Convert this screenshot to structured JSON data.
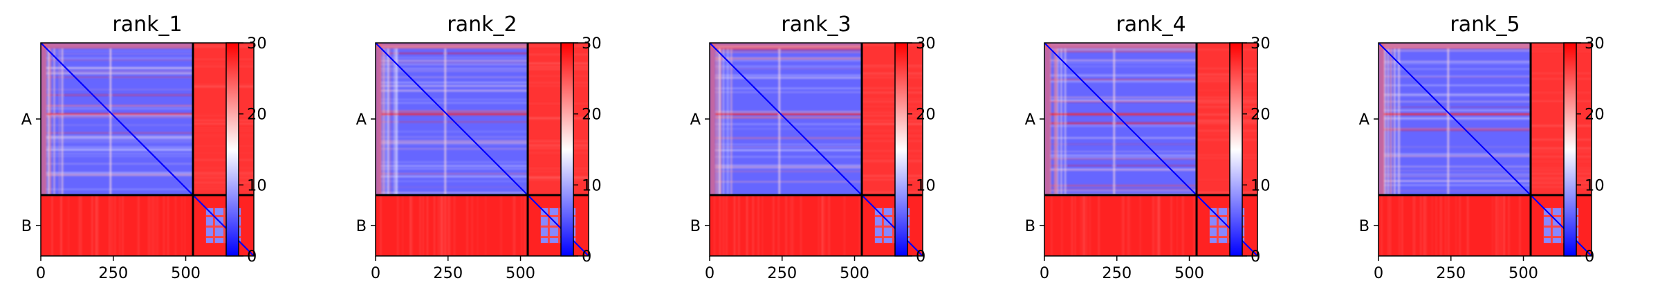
{
  "chart_data": [
    {
      "type": "heatmap",
      "title": "rank_1",
      "x_ticks": [
        0,
        250,
        500
      ],
      "y_tick_labels": [
        "A",
        "B"
      ],
      "chain_lengths": [
        525,
        210
      ],
      "colorbar": {
        "min": 0,
        "max": 30,
        "ticks": [
          0,
          10,
          20,
          30
        ],
        "colormap": [
          "#0000ff",
          "#ffffff",
          "#ff0000"
        ]
      }
    },
    {
      "type": "heatmap",
      "title": "rank_2",
      "x_ticks": [
        0,
        250,
        500
      ],
      "y_tick_labels": [
        "A",
        "B"
      ],
      "chain_lengths": [
        525,
        210
      ],
      "colorbar": {
        "min": 0,
        "max": 30,
        "ticks": [
          0,
          10,
          20,
          30
        ],
        "colormap": [
          "#0000ff",
          "#ffffff",
          "#ff0000"
        ]
      }
    },
    {
      "type": "heatmap",
      "title": "rank_3",
      "x_ticks": [
        0,
        250,
        500
      ],
      "y_tick_labels": [
        "A",
        "B"
      ],
      "chain_lengths": [
        525,
        210
      ],
      "colorbar": {
        "min": 0,
        "max": 30,
        "ticks": [
          0,
          10,
          20,
          30
        ],
        "colormap": [
          "#0000ff",
          "#ffffff",
          "#ff0000"
        ]
      }
    },
    {
      "type": "heatmap",
      "title": "rank_4",
      "x_ticks": [
        0,
        250,
        500
      ],
      "y_tick_labels": [
        "A",
        "B"
      ],
      "chain_lengths": [
        525,
        210
      ],
      "colorbar": {
        "min": 0,
        "max": 30,
        "ticks": [
          0,
          10,
          20,
          30
        ],
        "colormap": [
          "#0000ff",
          "#ffffff",
          "#ff0000"
        ]
      }
    },
    {
      "type": "heatmap",
      "title": "rank_5",
      "x_ticks": [
        0,
        250,
        500
      ],
      "y_tick_labels": [
        "A",
        "B"
      ],
      "chain_lengths": [
        525,
        210
      ],
      "colorbar": {
        "min": 0,
        "max": 30,
        "ticks": [
          0,
          10,
          20,
          30
        ],
        "colormap": [
          "#0000ff",
          "#ffffff",
          "#ff0000"
        ]
      }
    }
  ]
}
